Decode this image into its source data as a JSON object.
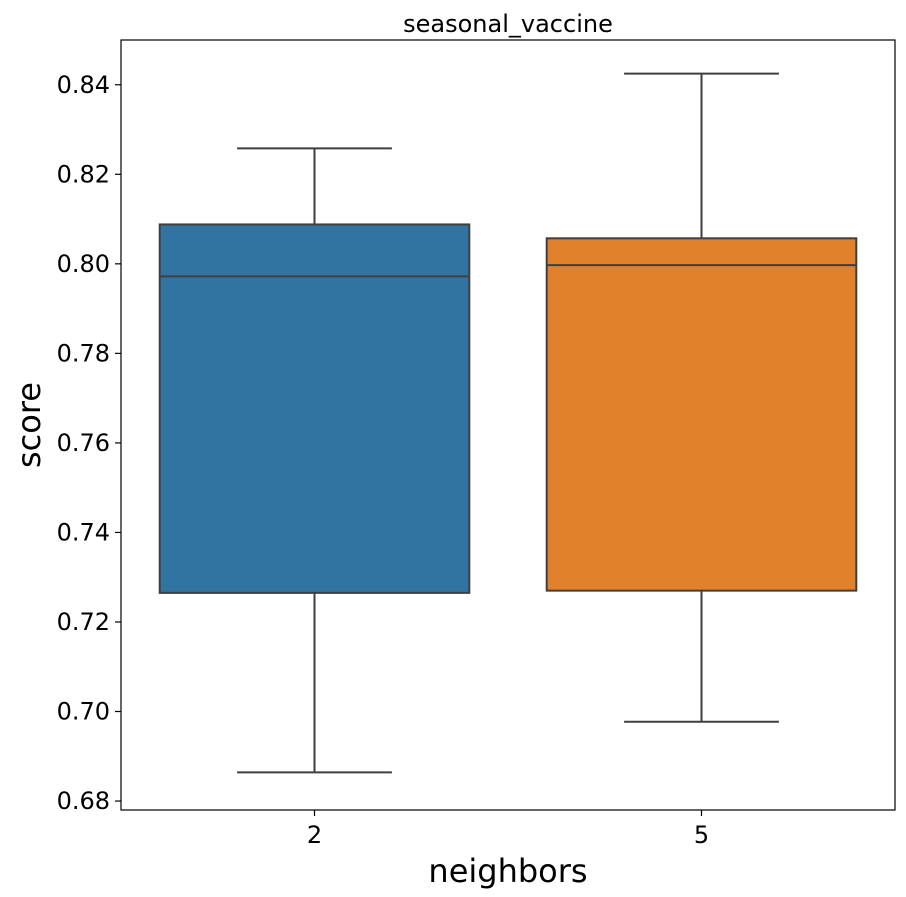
{
  "chart_data": {
    "type": "box",
    "title": "seasonal_vaccine",
    "xlabel": "neighbors",
    "ylabel": "score",
    "categories": [
      "2",
      "5"
    ],
    "ylim": [
      0.678,
      0.85
    ],
    "yticks": [
      0.68,
      0.7,
      0.72,
      0.74,
      0.76,
      0.78,
      0.8,
      0.82,
      0.84
    ],
    "ytick_labels": [
      "0.68",
      "0.70",
      "0.72",
      "0.74",
      "0.76",
      "0.78",
      "0.80",
      "0.82",
      "0.84"
    ],
    "boxes": [
      {
        "category": "2",
        "whisker_low": 0.6864,
        "q1": 0.7265,
        "median": 0.7972,
        "q3": 0.8088,
        "whisker_high": 0.8258,
        "color": "#3274a1"
      },
      {
        "category": "5",
        "whisker_low": 0.6977,
        "q1": 0.727,
        "median": 0.7997,
        "q3": 0.8057,
        "whisker_high": 0.8425,
        "color": "#e1812c"
      }
    ],
    "grid": false,
    "legend": "none"
  }
}
